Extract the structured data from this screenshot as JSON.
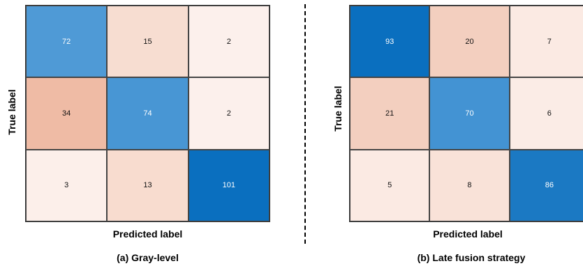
{
  "chart_data": [
    {
      "type": "heatmap",
      "title": "",
      "caption": "(a) Gray-level",
      "xlabel": "Predicted label",
      "ylabel": "True label",
      "matrix": [
        [
          72,
          15,
          2
        ],
        [
          34,
          74,
          2
        ],
        [
          3,
          13,
          101
        ]
      ],
      "colors": [
        [
          "#4f9ad6",
          "#f7ddd1",
          "#fcf0ec"
        ],
        [
          "#efbba5",
          "#4896d4",
          "#fcf0ec"
        ],
        [
          "#fcefea",
          "#f8dccf",
          "#0a6fbf"
        ]
      ]
    },
    {
      "type": "heatmap",
      "title": "",
      "caption": "(b) Late fusion strategy",
      "xlabel": "Predicted label",
      "ylabel": "True label",
      "matrix": [
        [
          93,
          20,
          7
        ],
        [
          21,
          70,
          6
        ],
        [
          5,
          8,
          86
        ]
      ],
      "colors": [
        [
          "#0a6fbf",
          "#f3cfbf",
          "#fbeae3"
        ],
        [
          "#f3cfbf",
          "#4393d3",
          "#fbece6"
        ],
        [
          "#fbeae3",
          "#f9e2d8",
          "#1b79c3"
        ]
      ]
    }
  ]
}
